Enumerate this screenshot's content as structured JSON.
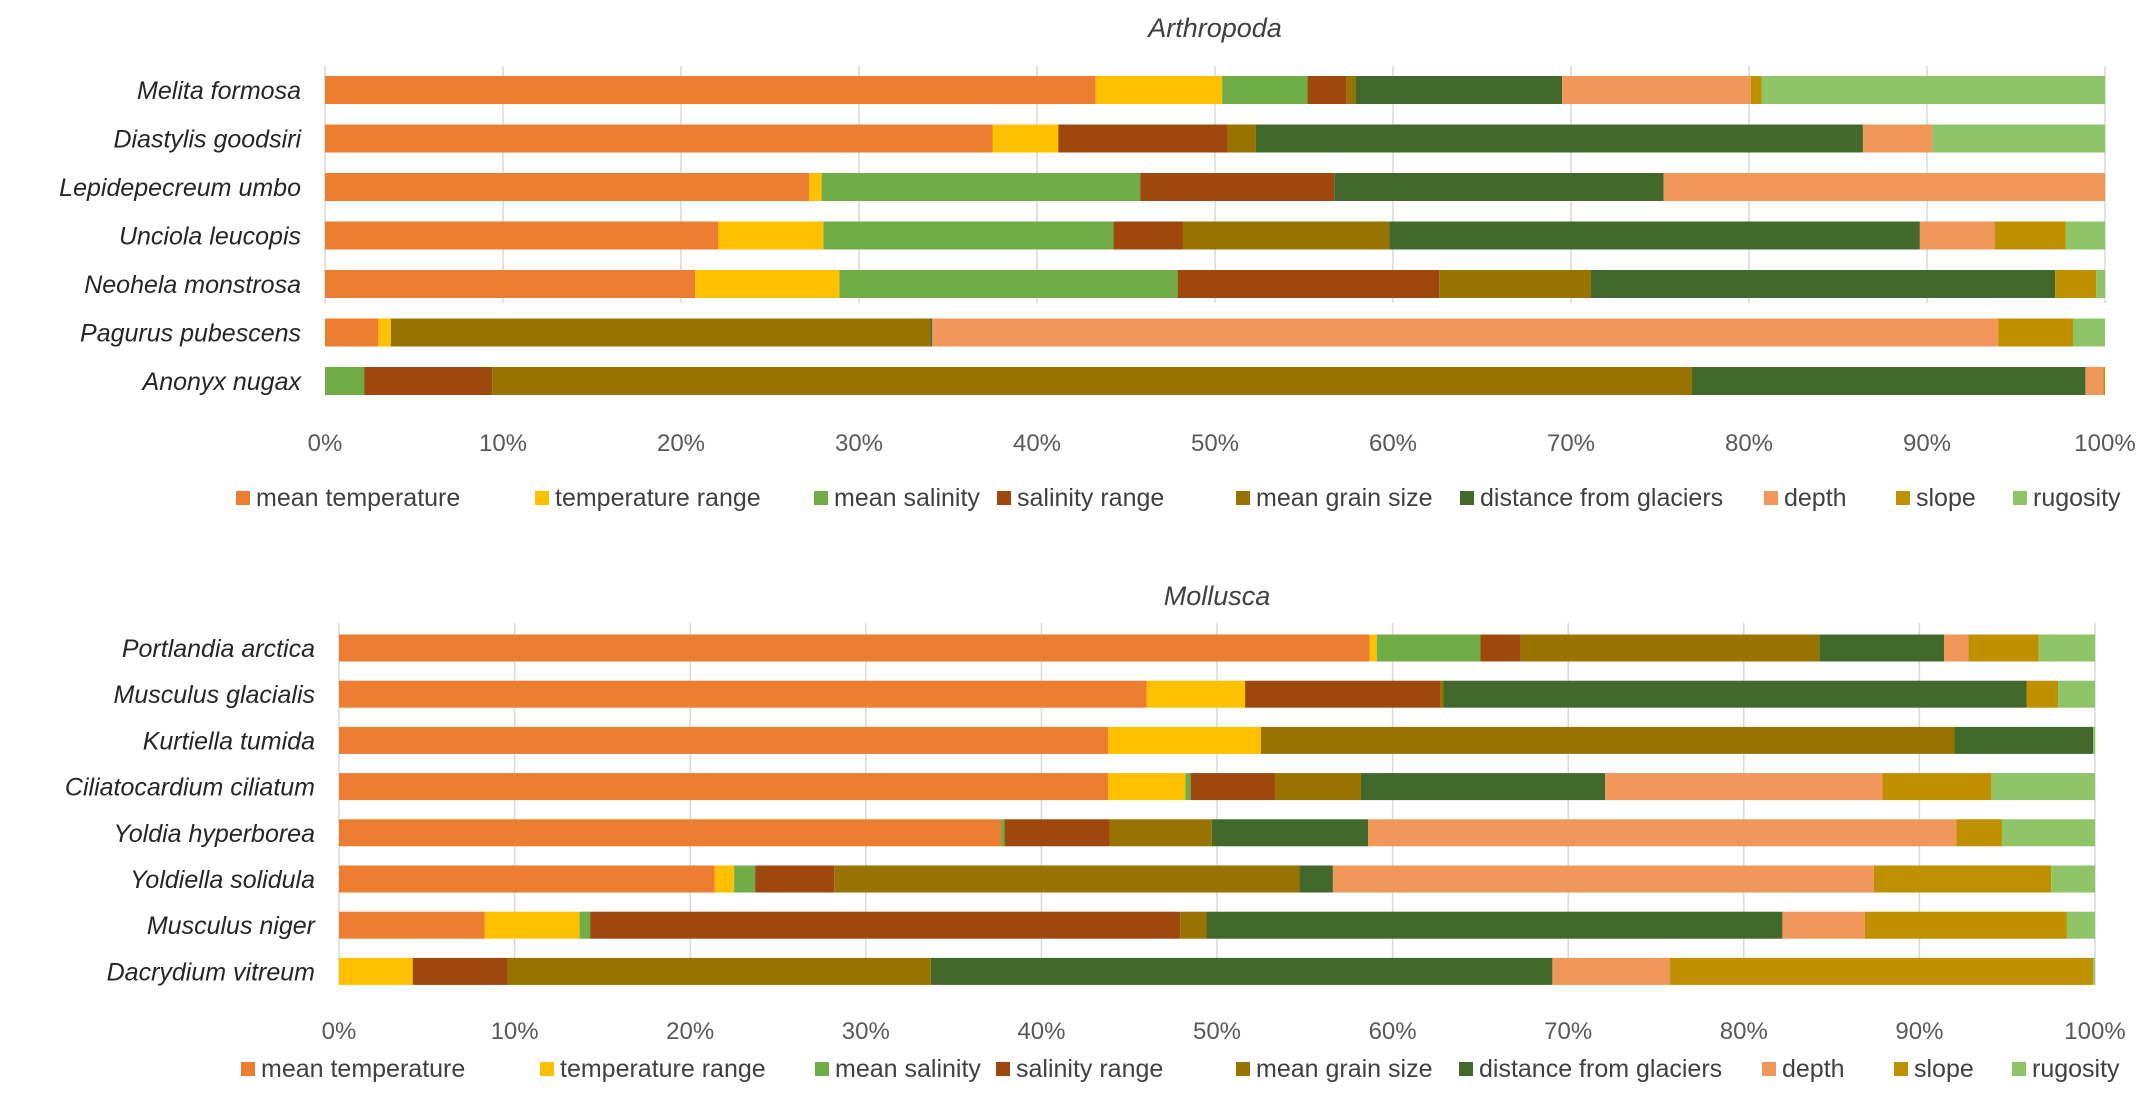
{
  "chart_data": [
    {
      "type": "bar",
      "orientation": "horizontal",
      "stacked": "percent",
      "title": "Arthropoda",
      "categories": [
        "Melita formosa",
        "Diastylis goodsiri",
        "Lepidepecreum umbo",
        "Unciola leucopis",
        "Neohela monstrosa",
        "Pagurus pubescens",
        "Anonyx nugax"
      ],
      "tick_labels": [
        "0%",
        "10%",
        "20%",
        "30%",
        "40%",
        "50%",
        "60%",
        "70%",
        "80%",
        "90%",
        "100%"
      ],
      "xlim": [
        0,
        100
      ],
      "grid": true,
      "legend_position": "bottom",
      "series": [
        {
          "name": "mean temperature",
          "color": "#ED7D31",
          "values": [
            43.3,
            37.5,
            27.2,
            22.1,
            20.8,
            3.0,
            0.0
          ]
        },
        {
          "name": "temperature range",
          "color": "#FFC000",
          "values": [
            7.1,
            3.7,
            0.7,
            5.9,
            8.1,
            0.7,
            0.0
          ]
        },
        {
          "name": "mean salinity",
          "color": "#70AD47",
          "values": [
            4.8,
            0.0,
            17.9,
            16.3,
            19.0,
            0.0,
            2.2
          ]
        },
        {
          "name": "salinity range",
          "color": "#9E480E",
          "values": [
            2.2,
            9.5,
            10.9,
            3.9,
            14.7,
            0.0,
            7.2
          ]
        },
        {
          "name": "mean grain size",
          "color": "#997300",
          "values": [
            0.5,
            1.6,
            0.0,
            11.6,
            8.5,
            30.3,
            67.4
          ]
        },
        {
          "name": "distance from glaciers",
          "color": "#43682B",
          "values": [
            11.6,
            34.1,
            18.5,
            29.8,
            26.1,
            0.1,
            22.1
          ]
        },
        {
          "name": "depth",
          "color": "#F1975A",
          "values": [
            10.6,
            3.9,
            24.8,
            4.2,
            0.0,
            59.9,
            1.0
          ]
        },
        {
          "name": "slope",
          "color": "#BF9000",
          "values": [
            0.6,
            0.0,
            0.0,
            4.0,
            2.3,
            4.2,
            0.1
          ]
        },
        {
          "name": "rugosity",
          "color": "#8FC566",
          "values": [
            19.3,
            9.7,
            0.0,
            2.2,
            0.5,
            1.8,
            0.0
          ]
        }
      ]
    },
    {
      "type": "bar",
      "orientation": "horizontal",
      "stacked": "percent",
      "title": "Mollusca",
      "categories": [
        "Portlandia arctica",
        "Musculus glacialis",
        "Kurtiella tumida",
        "Ciliatocardium ciliatum",
        "Yoldia hyperborea",
        "Yoldiella solidula",
        "Musculus niger",
        "Dacrydium vitreum"
      ],
      "tick_labels": [
        "0%",
        "10%",
        "20%",
        "30%",
        "40%",
        "50%",
        "60%",
        "70%",
        "80%",
        "90%",
        "100%"
      ],
      "xlim": [
        0,
        100
      ],
      "grid": true,
      "legend_position": "bottom",
      "series": [
        {
          "name": "mean temperature",
          "color": "#ED7D31",
          "values": [
            58.7,
            46.0,
            43.8,
            43.8,
            37.7,
            21.4,
            8.3,
            0.0
          ]
        },
        {
          "name": "temperature range",
          "color": "#FFC000",
          "values": [
            0.4,
            5.6,
            8.7,
            4.4,
            0.0,
            1.1,
            5.4,
            4.2
          ]
        },
        {
          "name": "mean salinity",
          "color": "#70AD47",
          "values": [
            5.9,
            0.0,
            0.0,
            0.3,
            0.2,
            1.2,
            0.6,
            0.0
          ]
        },
        {
          "name": "salinity range",
          "color": "#9E480E",
          "values": [
            2.3,
            11.1,
            0.0,
            4.8,
            6.0,
            4.5,
            33.6,
            5.4
          ]
        },
        {
          "name": "mean grain size",
          "color": "#997300",
          "values": [
            17.0,
            0.2,
            39.5,
            4.9,
            5.8,
            26.5,
            1.5,
            24.1
          ]
        },
        {
          "name": "distance from glaciers",
          "color": "#43682B",
          "values": [
            7.1,
            33.2,
            7.9,
            13.9,
            8.9,
            1.9,
            32.8,
            35.4
          ]
        },
        {
          "name": "depth",
          "color": "#F1975A",
          "values": [
            1.4,
            0.0,
            0.0,
            15.8,
            33.5,
            30.8,
            4.7,
            6.7
          ]
        },
        {
          "name": "slope",
          "color": "#BF9000",
          "values": [
            4.0,
            1.8,
            0.0,
            6.2,
            2.6,
            10.1,
            11.5,
            24.1
          ]
        },
        {
          "name": "rugosity",
          "color": "#8FC566",
          "values": [
            3.2,
            2.1,
            0.1,
            5.9,
            5.3,
            2.5,
            1.6,
            0.1
          ]
        }
      ]
    }
  ]
}
